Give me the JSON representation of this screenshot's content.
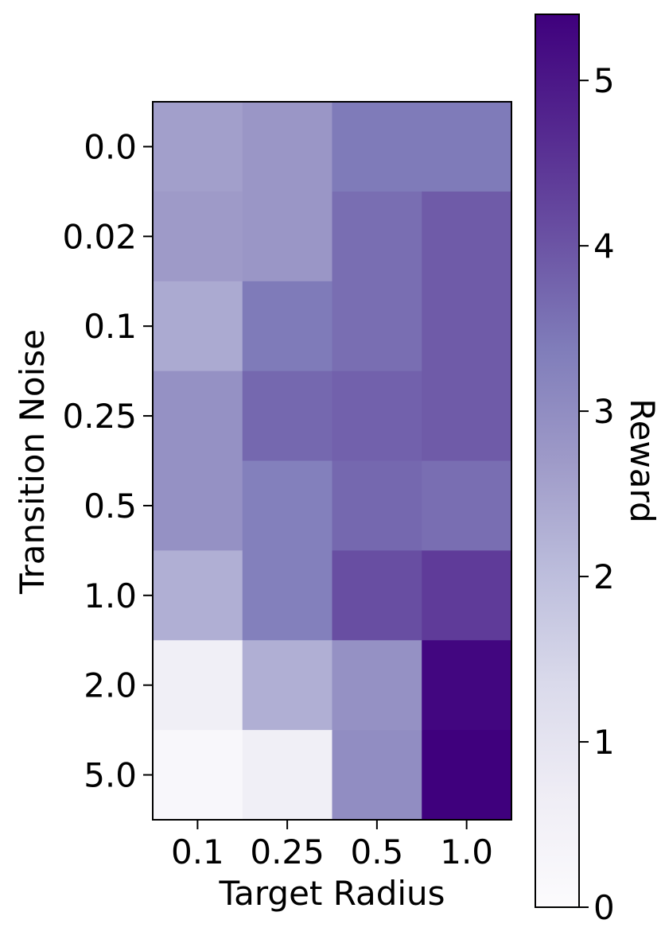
{
  "chart_data": {
    "type": "heatmap",
    "xlabel": "Target Radius",
    "ylabel": "Transition Noise",
    "x_categories": [
      "0.1",
      "0.25",
      "0.5",
      "1.0"
    ],
    "y_categories": [
      "0.0",
      "0.02",
      "0.1",
      "0.25",
      "0.5",
      "1.0",
      "2.0",
      "5.0"
    ],
    "values": [
      [
        2.6,
        2.8,
        3.4,
        3.4
      ],
      [
        2.7,
        2.8,
        3.6,
        3.9
      ],
      [
        2.4,
        3.4,
        3.6,
        3.9
      ],
      [
        2.9,
        3.7,
        3.8,
        3.9
      ],
      [
        2.9,
        3.3,
        3.7,
        3.6
      ],
      [
        2.3,
        3.3,
        4.1,
        4.4
      ],
      [
        0.6,
        2.3,
        2.9,
        5.3
      ],
      [
        0.2,
        0.6,
        3.0,
        5.4
      ]
    ],
    "colorbar": {
      "label": "Reward",
      "min": 0,
      "max": 5.4,
      "ticks": [
        "0",
        "1",
        "2",
        "3",
        "4",
        "5"
      ]
    },
    "colormap": "Purples",
    "colormap_stops": [
      "#fcfbfd",
      "#efedf5",
      "#dadaeb",
      "#bcbddc",
      "#9e9ac8",
      "#807dba",
      "#6a51a3",
      "#54278f",
      "#3f007d"
    ]
  }
}
